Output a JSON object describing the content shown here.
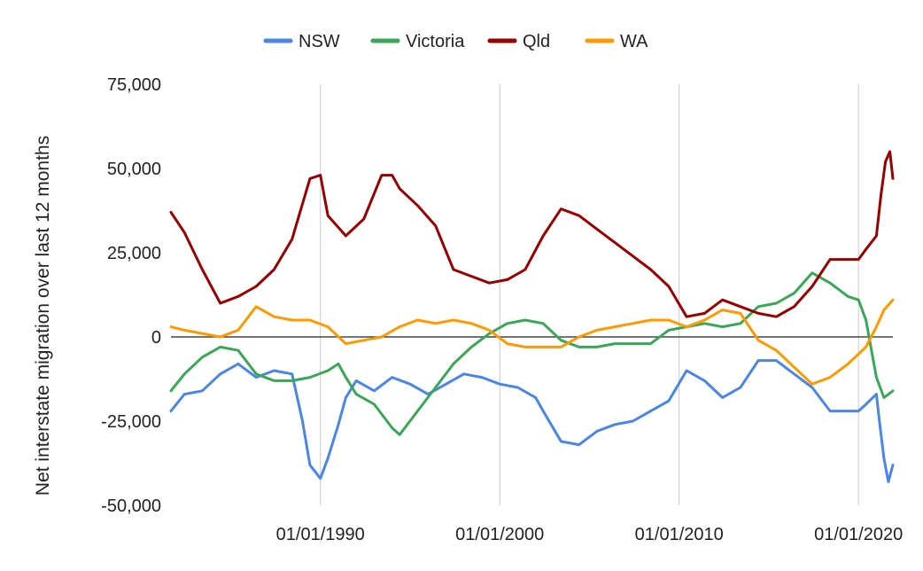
{
  "chart_data": {
    "type": "line",
    "title": "",
    "xlabel": "",
    "ylabel": "Net interstate migration over last 12 months",
    "x_range": [
      "1981-09",
      "2021-12"
    ],
    "ylim": [
      -50000,
      75000
    ],
    "y_ticks": [
      75000,
      50000,
      25000,
      0,
      -25000,
      -50000
    ],
    "y_tick_labels": [
      "75,000",
      "50,000",
      "25,000",
      "0",
      "-25,000",
      "-50,000"
    ],
    "x_ticks": [
      "1990-01",
      "2000-01",
      "2010-01",
      "2020-01"
    ],
    "x_tick_labels": [
      "01/01/1990",
      "01/01/2000",
      "01/01/2010",
      "01/01/2020"
    ],
    "grid": "vertical",
    "legend_position": "top",
    "series": [
      {
        "name": "NSW",
        "color": "#4a86e8",
        "points": [
          [
            "1981-09",
            -22000
          ],
          [
            "1982-06",
            -17000
          ],
          [
            "1983-06",
            -16000
          ],
          [
            "1984-06",
            -11000
          ],
          [
            "1985-06",
            -8000
          ],
          [
            "1986-06",
            -12000
          ],
          [
            "1987-06",
            -10000
          ],
          [
            "1988-06",
            -11000
          ],
          [
            "1989-01",
            -25000
          ],
          [
            "1989-06",
            -38000
          ],
          [
            "1990-01",
            -42000
          ],
          [
            "1990-06",
            -36000
          ],
          [
            "1991-01",
            -26000
          ],
          [
            "1991-06",
            -18000
          ],
          [
            "1992-01",
            -13000
          ],
          [
            "1993-01",
            -16000
          ],
          [
            "1994-01",
            -12000
          ],
          [
            "1995-01",
            -14000
          ],
          [
            "1996-01",
            -17000
          ],
          [
            "1997-01",
            -14000
          ],
          [
            "1998-01",
            -11000
          ],
          [
            "1999-01",
            -12000
          ],
          [
            "2000-01",
            -14000
          ],
          [
            "2001-01",
            -15000
          ],
          [
            "2002-01",
            -18000
          ],
          [
            "2002-06",
            -22000
          ],
          [
            "2003-06",
            -31000
          ],
          [
            "2004-06",
            -32000
          ],
          [
            "2005-06",
            -28000
          ],
          [
            "2006-06",
            -26000
          ],
          [
            "2007-06",
            -25000
          ],
          [
            "2008-06",
            -22000
          ],
          [
            "2009-06",
            -19000
          ],
          [
            "2010-06",
            -10000
          ],
          [
            "2011-06",
            -13000
          ],
          [
            "2012-06",
            -18000
          ],
          [
            "2013-06",
            -15000
          ],
          [
            "2014-06",
            -7000
          ],
          [
            "2015-06",
            -7000
          ],
          [
            "2016-06",
            -11000
          ],
          [
            "2017-06",
            -15000
          ],
          [
            "2018-06",
            -22000
          ],
          [
            "2019-06",
            -22000
          ],
          [
            "2020-01",
            -22000
          ],
          [
            "2020-06",
            -20000
          ],
          [
            "2021-01",
            -17000
          ],
          [
            "2021-03",
            -25000
          ],
          [
            "2021-06",
            -36000
          ],
          [
            "2021-09",
            -43000
          ],
          [
            "2021-12",
            -38000
          ]
        ]
      },
      {
        "name": "Victoria",
        "color": "#3aa757",
        "points": [
          [
            "1981-09",
            -16000
          ],
          [
            "1982-06",
            -11000
          ],
          [
            "1983-06",
            -6000
          ],
          [
            "1984-06",
            -3000
          ],
          [
            "1985-06",
            -4000
          ],
          [
            "1986-06",
            -11000
          ],
          [
            "1987-06",
            -13000
          ],
          [
            "1988-06",
            -13000
          ],
          [
            "1989-06",
            -12000
          ],
          [
            "1990-06",
            -10000
          ],
          [
            "1991-01",
            -8000
          ],
          [
            "1991-06",
            -12000
          ],
          [
            "1992-01",
            -17000
          ],
          [
            "1993-01",
            -20000
          ],
          [
            "1994-01",
            -27000
          ],
          [
            "1994-06",
            -29000
          ],
          [
            "1995-06",
            -22000
          ],
          [
            "1996-06",
            -15000
          ],
          [
            "1997-06",
            -8000
          ],
          [
            "1998-06",
            -3000
          ],
          [
            "1999-06",
            1000
          ],
          [
            "2000-06",
            4000
          ],
          [
            "2001-06",
            5000
          ],
          [
            "2002-06",
            4000
          ],
          [
            "2003-06",
            -1000
          ],
          [
            "2004-06",
            -3000
          ],
          [
            "2005-06",
            -3000
          ],
          [
            "2006-06",
            -2000
          ],
          [
            "2007-06",
            -2000
          ],
          [
            "2008-06",
            -2000
          ],
          [
            "2009-06",
            2000
          ],
          [
            "2010-06",
            3000
          ],
          [
            "2011-06",
            4000
          ],
          [
            "2012-06",
            3000
          ],
          [
            "2013-06",
            4000
          ],
          [
            "2014-06",
            9000
          ],
          [
            "2015-06",
            10000
          ],
          [
            "2016-06",
            13000
          ],
          [
            "2017-06",
            19000
          ],
          [
            "2018-06",
            16000
          ],
          [
            "2019-06",
            12000
          ],
          [
            "2020-01",
            11000
          ],
          [
            "2020-06",
            5000
          ],
          [
            "2021-01",
            -12000
          ],
          [
            "2021-06",
            -18000
          ],
          [
            "2021-12",
            -16000
          ]
        ]
      },
      {
        "name": "Qld",
        "color": "#990000",
        "points": [
          [
            "1981-09",
            37000
          ],
          [
            "1982-06",
            31000
          ],
          [
            "1983-06",
            20000
          ],
          [
            "1984-06",
            10000
          ],
          [
            "1985-06",
            12000
          ],
          [
            "1986-06",
            15000
          ],
          [
            "1987-06",
            20000
          ],
          [
            "1988-06",
            29000
          ],
          [
            "1989-06",
            47000
          ],
          [
            "1990-01",
            48000
          ],
          [
            "1990-06",
            36000
          ],
          [
            "1991-06",
            30000
          ],
          [
            "1992-06",
            35000
          ],
          [
            "1993-06",
            48000
          ],
          [
            "1994-01",
            48000
          ],
          [
            "1994-06",
            44000
          ],
          [
            "1995-06",
            39000
          ],
          [
            "1996-06",
            33000
          ],
          [
            "1997-06",
            20000
          ],
          [
            "1998-06",
            18000
          ],
          [
            "1999-06",
            16000
          ],
          [
            "2000-06",
            17000
          ],
          [
            "2001-06",
            20000
          ],
          [
            "2002-06",
            30000
          ],
          [
            "2003-06",
            38000
          ],
          [
            "2004-06",
            36000
          ],
          [
            "2005-06",
            32000
          ],
          [
            "2006-06",
            28000
          ],
          [
            "2007-06",
            24000
          ],
          [
            "2008-06",
            20000
          ],
          [
            "2009-06",
            15000
          ],
          [
            "2010-06",
            6000
          ],
          [
            "2011-06",
            7000
          ],
          [
            "2012-06",
            11000
          ],
          [
            "2013-06",
            9000
          ],
          [
            "2014-06",
            7000
          ],
          [
            "2015-06",
            6000
          ],
          [
            "2016-06",
            9000
          ],
          [
            "2017-06",
            15000
          ],
          [
            "2018-06",
            23000
          ],
          [
            "2019-06",
            23000
          ],
          [
            "2020-01",
            23000
          ],
          [
            "2020-06",
            26000
          ],
          [
            "2021-01",
            30000
          ],
          [
            "2021-04",
            42000
          ],
          [
            "2021-07",
            52000
          ],
          [
            "2021-10",
            55000
          ],
          [
            "2021-12",
            47000
          ]
        ]
      },
      {
        "name": "WA",
        "color": "#ff9900",
        "points": [
          [
            "1981-09",
            3000
          ],
          [
            "1982-06",
            2000
          ],
          [
            "1983-06",
            1000
          ],
          [
            "1984-06",
            0
          ],
          [
            "1985-06",
            2000
          ],
          [
            "1986-06",
            9000
          ],
          [
            "1987-06",
            6000
          ],
          [
            "1988-06",
            5000
          ],
          [
            "1989-06",
            5000
          ],
          [
            "1990-06",
            3000
          ],
          [
            "1991-06",
            -2000
          ],
          [
            "1992-06",
            -1000
          ],
          [
            "1993-06",
            0
          ],
          [
            "1994-06",
            3000
          ],
          [
            "1995-06",
            5000
          ],
          [
            "1996-06",
            4000
          ],
          [
            "1997-06",
            5000
          ],
          [
            "1998-06",
            4000
          ],
          [
            "1999-06",
            2000
          ],
          [
            "2000-06",
            -2000
          ],
          [
            "2001-06",
            -3000
          ],
          [
            "2002-06",
            -3000
          ],
          [
            "2003-06",
            -3000
          ],
          [
            "2004-06",
            0
          ],
          [
            "2005-06",
            2000
          ],
          [
            "2006-06",
            3000
          ],
          [
            "2007-06",
            4000
          ],
          [
            "2008-06",
            5000
          ],
          [
            "2009-06",
            5000
          ],
          [
            "2010-06",
            3000
          ],
          [
            "2011-06",
            5000
          ],
          [
            "2012-06",
            8000
          ],
          [
            "2013-06",
            7000
          ],
          [
            "2014-06",
            -1000
          ],
          [
            "2015-06",
            -4000
          ],
          [
            "2016-06",
            -9000
          ],
          [
            "2017-06",
            -14000
          ],
          [
            "2018-06",
            -12000
          ],
          [
            "2019-06",
            -8000
          ],
          [
            "2020-06",
            -3000
          ],
          [
            "2021-01",
            3000
          ],
          [
            "2021-06",
            8000
          ],
          [
            "2021-12",
            11000
          ]
        ]
      }
    ]
  }
}
